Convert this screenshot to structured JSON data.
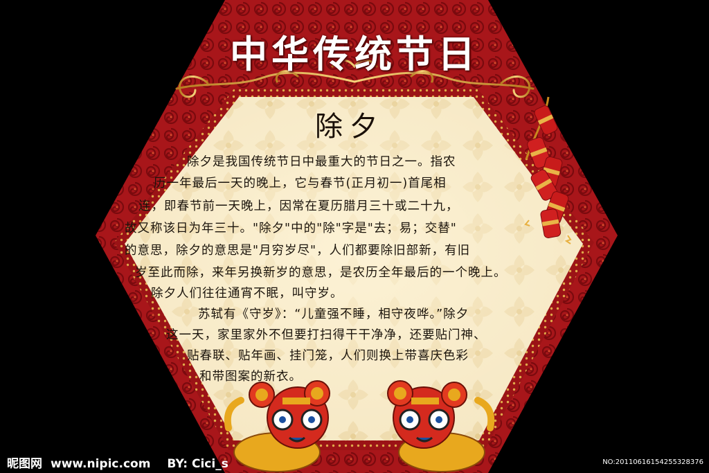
{
  "title": "中华传统节日",
  "subtitle": "除夕",
  "body_lines": [
    "除夕是我国传统节日中最重大的节日之一。指农",
    "历一年最后一天的晚上，它与春节(正月初一)首尾相",
    "连，即春节前一天晚上，因常在夏历腊月三十或二十九，",
    "故又称该日为年三十。\"除夕\"中的\"除\"字是\"去；易；交替\"",
    "的意思，除夕的意思是\"月穷岁尽\"，人们都要除旧部新，有旧",
    "岁至此而除，来年另换新岁的意思，是农历全年最后的一个晚上。",
    "除夕人们往往通宵不眠，叫守岁。",
    "苏轼有《守岁》：“儿童强不睡，相守夜哗。”除夕",
    "这一天，家里家外不但要打扫得干干净净，还要贴门神、",
    "贴春联、贴年画、挂门笼，人们则换上带喜庆色彩",
    "和带图案的新衣。"
  ],
  "watermark": {
    "site_name": "昵图网",
    "url": "www.nipic.com",
    "author": "BY: Cici_s",
    "image_no": "NO:20110616154255328376"
  },
  "colors": {
    "background": "#000000",
    "frame_red": "#a8161a",
    "frame_dark_red": "#7a0a0e",
    "gold": "#d4a13b",
    "parchment": "#f6e8c4",
    "text": "#1b140c",
    "title": "#ffffff"
  },
  "decorations": [
    "firecracker-icon",
    "tiger-mascot-icon",
    "gold-scroll-ornament"
  ]
}
